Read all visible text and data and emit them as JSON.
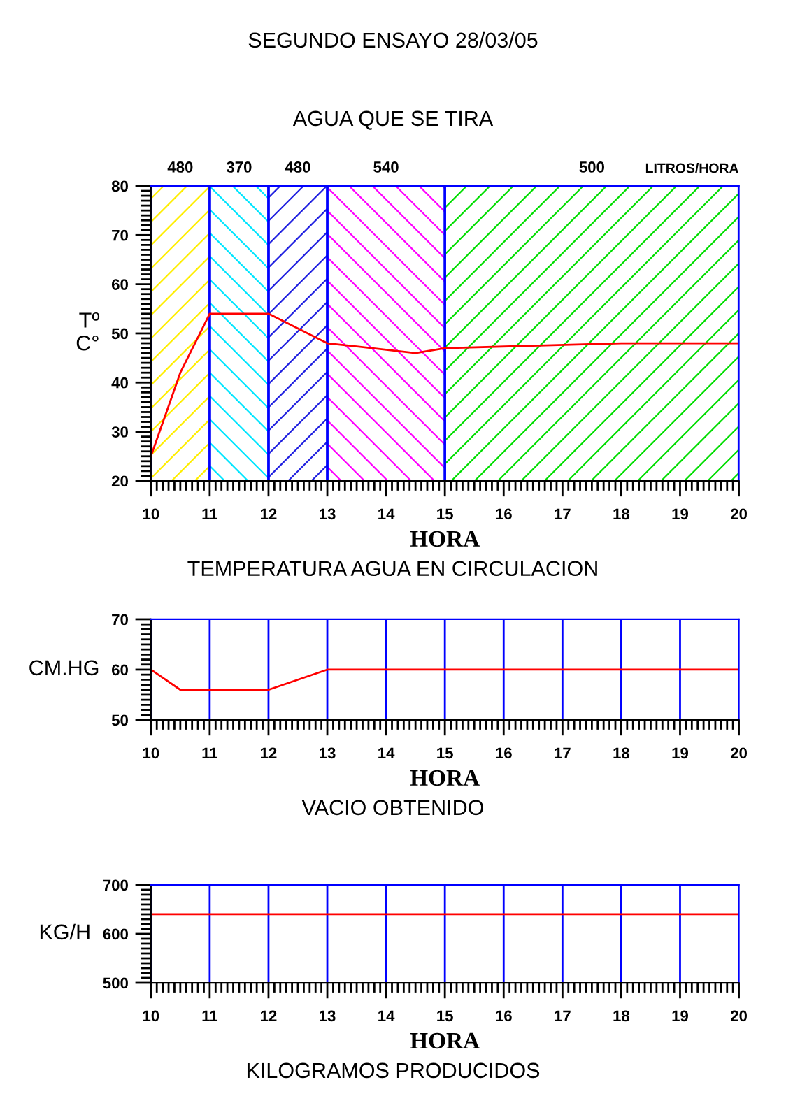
{
  "chart_data": [
    {
      "type": "line",
      "title": "SEGUNDO ENSAYO 28/03/05",
      "subtitle": "AGUA QUE SE TIRA",
      "xlabel": "HORA",
      "ylabel": "Tº\nC°",
      "annotations": [
        "TEMPERATURA AGUA EN CIRCULACION",
        "LITROS/HORA"
      ],
      "x": [
        10,
        10.5,
        11,
        12,
        13,
        14.5,
        15,
        18,
        20
      ],
      "series": [
        {
          "color": "#ff0000",
          "values": [
            25,
            42,
            54,
            54,
            48,
            46,
            47,
            48,
            48
          ]
        }
      ],
      "bands": [
        {
          "axis": "x",
          "from": 10,
          "to": 11,
          "label": "480",
          "color": "#ffee00"
        },
        {
          "axis": "x",
          "from": 11,
          "to": 12,
          "label": "370",
          "color": "#00e5ff"
        },
        {
          "axis": "x",
          "from": 12,
          "to": 13,
          "label": "480",
          "color": "#2020e0"
        },
        {
          "axis": "x",
          "from": 13,
          "to": 15,
          "label": "540",
          "color": "#ff00ff"
        },
        {
          "axis": "x",
          "from": 15,
          "to": 20,
          "label": "500",
          "color": "#00dd00"
        }
      ],
      "xlim": [
        10,
        20
      ],
      "ylim": [
        20,
        80
      ],
      "xticks": [
        10,
        11,
        12,
        13,
        14,
        15,
        16,
        17,
        18,
        19,
        20
      ],
      "yticks": [
        20,
        30,
        40,
        50,
        60,
        70,
        80
      ],
      "grid": false
    },
    {
      "type": "line",
      "xlabel": "HORA",
      "ylabel": "CM.HG",
      "annotations": [
        "VACIO OBTENIDO"
      ],
      "x": [
        10,
        10.5,
        12,
        13,
        20
      ],
      "series": [
        {
          "color": "#ff0000",
          "values": [
            60,
            56,
            56,
            60,
            60
          ]
        }
      ],
      "xlim": [
        10,
        20
      ],
      "ylim": [
        50,
        70
      ],
      "xticks": [
        10,
        11,
        12,
        13,
        14,
        15,
        16,
        17,
        18,
        19,
        20
      ],
      "yticks": [
        50,
        60,
        70
      ],
      "grid": "x"
    },
    {
      "type": "line",
      "xlabel": "HORA",
      "ylabel": "KG/H",
      "annotations": [
        "KILOGRAMOS PRODUCIDOS"
      ],
      "x": [
        10,
        20
      ],
      "series": [
        {
          "color": "#ff0000",
          "values": [
            640,
            640
          ]
        }
      ],
      "xlim": [
        10,
        20
      ],
      "ylim": [
        500,
        700
      ],
      "xticks": [
        10,
        11,
        12,
        13,
        14,
        15,
        16,
        17,
        18,
        19,
        20
      ],
      "yticks": [
        500,
        600,
        700
      ],
      "grid": "x"
    }
  ]
}
